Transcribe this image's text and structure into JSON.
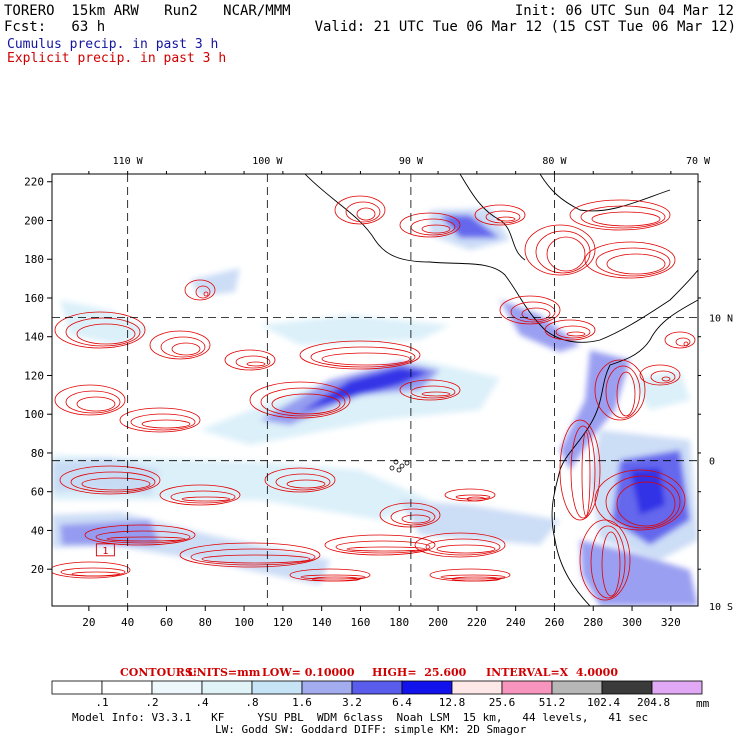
{
  "header": {
    "model": "TORERO  15km ARW   Run2   NCAR/MMM",
    "init": "Init: 06 UTC Sun 04 Mar 12",
    "fcst_label": "Fcst:   63 h",
    "valid": "Valid: 21 UTC Tue 06 Mar 12 (15 CST Tue 06 Mar 12)",
    "cumulus": "Cumulus precip. in past 3 h",
    "explicit": "Explicit precip. in past 3 h"
  },
  "colors": {
    "cumulus_text": "#1414a0",
    "explicit_text": "#d00000",
    "contour": "#e00000",
    "grid": "#000000"
  },
  "chart_data": {
    "type": "heatmap",
    "title": "",
    "xlabel": "",
    "ylabel": "",
    "x_ticks": [
      20,
      40,
      60,
      80,
      100,
      120,
      140,
      160,
      180,
      200,
      220,
      240,
      260,
      280,
      300,
      320
    ],
    "y_ticks": [
      20,
      40,
      60,
      80,
      100,
      120,
      140,
      160,
      180,
      200,
      220
    ],
    "xlim": [
      1,
      334
    ],
    "ylim": [
      1,
      224
    ],
    "lon_labels": [
      {
        "label": "110 W",
        "x": 40
      },
      {
        "label": "100 W",
        "x": 112
      },
      {
        "label": "90 W",
        "x": 186
      },
      {
        "label": "80 W",
        "x": 260
      },
      {
        "label": "70 W",
        "x": 334
      }
    ],
    "lat_labels": [
      {
        "label": "10 N",
        "y": 150
      },
      {
        "label": "0",
        "y": 76
      },
      {
        "label": "10 S",
        "y": 1
      }
    ],
    "contour_info": {
      "prefix": "CONTOURS:",
      "units": "UNITS=mm",
      "low": "LOW= 0.10000",
      "high": "HIGH=  25.600",
      "interval": "INTERVAL=X  4.0000"
    },
    "marker_label": "1",
    "colorbar": {
      "unit": "mm",
      "labels": [
        ".1",
        ".2",
        ".4",
        ".8",
        "1.6",
        "3.2",
        "6.4",
        "12.8",
        "25.6",
        "51.2",
        "102.4",
        "204.8"
      ],
      "colors": [
        "#ffffff",
        "#ffffff",
        "#eef7fc",
        "#e0f4f8",
        "#c7e4f7",
        "#a2acef",
        "#5a5cec",
        "#1212ec",
        "#fde7e7",
        "#f795be",
        "#b7b7b7",
        "#3a3a3a",
        "#e0a8f5"
      ]
    }
  },
  "footer": {
    "line1": "Model Info: V3.3.1   KF     YSU PBL  WDM 6class  Noah LSM  15 km,   44 levels,   41 sec",
    "line2": "LW: Godd SW: Goddard DIFF: simple KM: 2D Smagor"
  }
}
